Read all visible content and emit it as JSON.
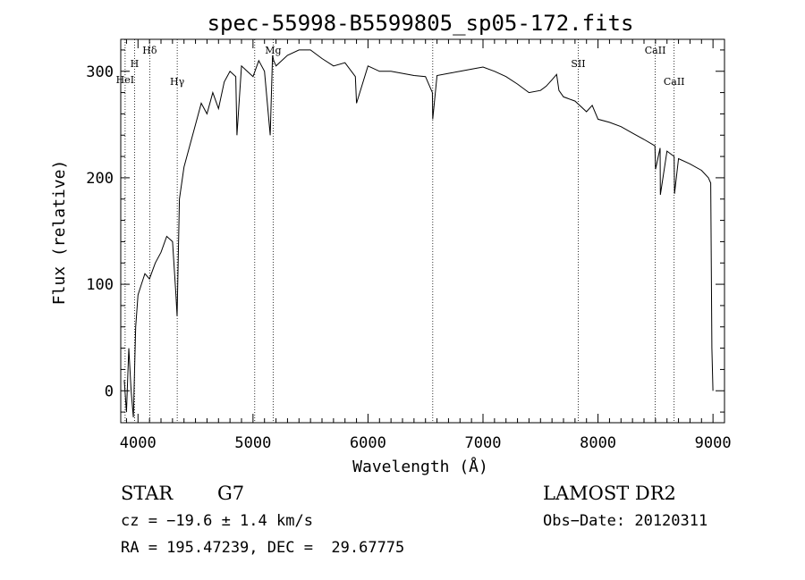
{
  "chart_data": {
    "type": "line",
    "title": "spec-55998-B5599805_sp05-172.fits",
    "xlabel": "Wavelength (Å)",
    "ylabel": "Flux (relative)",
    "xlim": [
      3850,
      9100
    ],
    "ylim": [
      -30,
      330
    ],
    "xticks": [
      4000,
      5000,
      6000,
      7000,
      8000,
      9000
    ],
    "yticks": [
      0,
      100,
      200,
      300
    ],
    "grid": false,
    "series": [
      {
        "color": "#000000",
        "x": [
          3880,
          3900,
          3920,
          3940,
          3960,
          3980,
          4000,
          4030,
          4060,
          4100,
          4150,
          4200,
          4250,
          4300,
          4330,
          4340,
          4360,
          4400,
          4450,
          4500,
          4550,
          4600,
          4650,
          4700,
          4750,
          4800,
          4850,
          4860,
          4900,
          4950,
          5000,
          5050,
          5100,
          5150,
          5170,
          5180,
          5200,
          5300,
          5400,
          5500,
          5600,
          5700,
          5800,
          5890,
          5900,
          6000,
          6100,
          6200,
          6300,
          6400,
          6500,
          6560,
          6563,
          6600,
          6700,
          6800,
          6900,
          7000,
          7100,
          7200,
          7300,
          7400,
          7500,
          7550,
          7600,
          7640,
          7660,
          7700,
          7800,
          7900,
          7950,
          8000,
          8100,
          8200,
          8300,
          8400,
          8495,
          8500,
          8540,
          8542,
          8600,
          8662,
          8665,
          8700,
          8800,
          8900,
          8960,
          8980,
          8990,
          9000
        ],
        "y": [
          10,
          -20,
          40,
          0,
          -25,
          60,
          90,
          100,
          110,
          105,
          120,
          130,
          145,
          140,
          90,
          70,
          180,
          210,
          230,
          250,
          270,
          260,
          280,
          265,
          290,
          300,
          295,
          240,
          305,
          300,
          295,
          310,
          300,
          240,
          315,
          310,
          305,
          315,
          320,
          320,
          312,
          305,
          308,
          295,
          270,
          305,
          300,
          300,
          298,
          296,
          295,
          280,
          255,
          296,
          298,
          300,
          302,
          304,
          300,
          295,
          288,
          280,
          282,
          286,
          292,
          297,
          282,
          276,
          272,
          262,
          268,
          255,
          252,
          248,
          242,
          236,
          230,
          208,
          228,
          184,
          225,
          220,
          185,
          218,
          213,
          207,
          200,
          195,
          40,
          0
        ]
      }
    ],
    "annotations": [
      {
        "label": "HeI",
        "x": 3888
      },
      {
        "label": "H",
        "x": 3970
      },
      {
        "label": "Hδ",
        "x": 4102
      },
      {
        "label": "Hγ",
        "x": 4341
      },
      {
        "label": "",
        "x": 5015
      },
      {
        "label": "Mg",
        "x": 5175
      },
      {
        "label": "",
        "x": 6563
      },
      {
        "label": "SII",
        "x": 7828
      },
      {
        "label": "CaII",
        "x": 8498
      },
      {
        "label": "CaII",
        "x": 8662
      }
    ]
  },
  "info": {
    "object_class": "STAR",
    "subclass": "G7",
    "survey": "LAMOST DR2",
    "redshift_line": "cz = −19.6 ± 1.4 km/s",
    "obs_date": "Obs−Date: 20120311",
    "coords": "RA = 195.47239, DEC =  29.67775"
  }
}
